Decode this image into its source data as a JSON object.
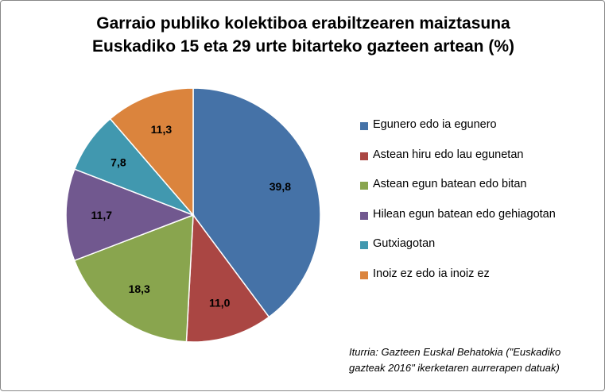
{
  "chart_data": {
    "type": "pie",
    "title": [
      "Garraio publiko kolektiboa erabiltzearen maiztasuna",
      "Euskadiko 15 eta 29 urte bitarteko gazteen artean (%)"
    ],
    "categories": [
      "Egunero edo ia egunero",
      "Astean hiru edo lau egunetan",
      "Astean egun batean edo bitan",
      "Hilean egun batean edo gehiagotan",
      "Gutxiagotan",
      "Inoiz ez edo ia inoiz ez"
    ],
    "values": [
      39.8,
      11.0,
      18.3,
      11.7,
      7.8,
      11.3
    ],
    "data_labels": [
      "39,8",
      "11,0",
      "18,3",
      "11,7",
      "7,8",
      "11,3"
    ],
    "colors": [
      "#4572A7",
      "#AA4643",
      "#89A54E",
      "#71588F",
      "#4198AF",
      "#DB843D"
    ],
    "legend_position": "right",
    "source": [
      "Iturria: Gazteen Euskal Behatokia (\"Euskadiko",
      "gazteak 2016\" ikerketaren aurrerapen datuak)"
    ]
  }
}
